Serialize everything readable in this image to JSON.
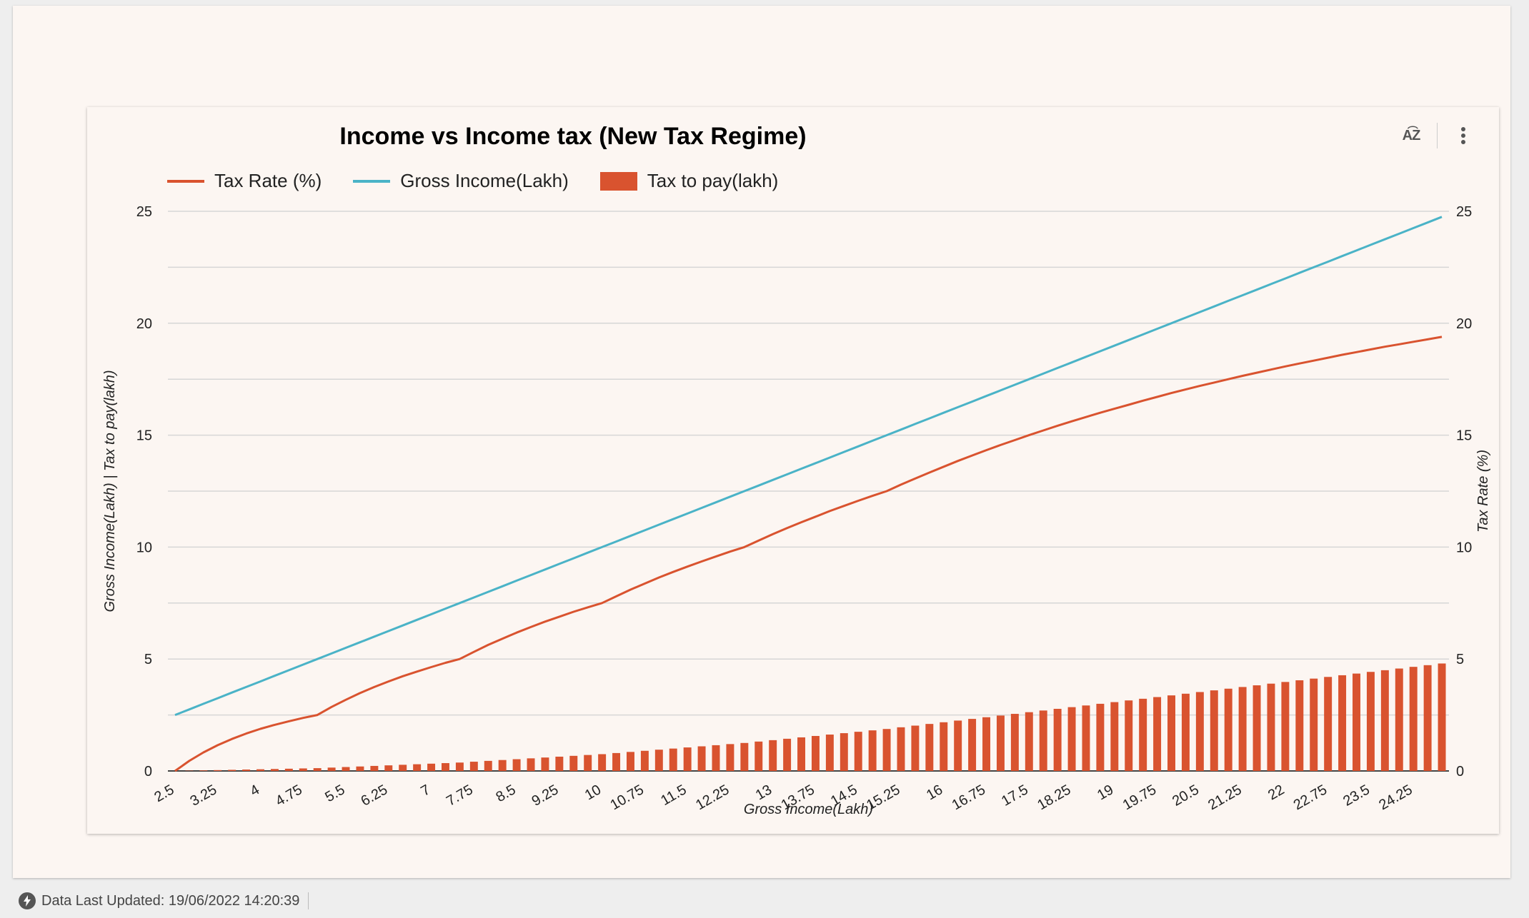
{
  "footer": {
    "text": "Data Last Updated: 19/06/2022 14:20:39"
  },
  "toolbar": {
    "sort_icon": "sort-az-icon",
    "menu_icon": "more-vert-icon"
  },
  "colors": {
    "tax_rate": "#d9532f",
    "gross_income": "#4ab3c7",
    "tax_to_pay": "#d9532f",
    "background": "#fcf6f2"
  },
  "chart_data": {
    "type": "bar",
    "title": "Income vs Income tax (New Tax Regime)",
    "xlabel": "Gross Income(Lakh)",
    "ylabel_left": "Gross Income(Lakh) | Tax to pay(lakh)",
    "ylabel_right": "Tax Rate (%)",
    "ylim": [
      0,
      25
    ],
    "yticks": [
      0,
      5,
      10,
      15,
      20,
      25
    ],
    "grid": true,
    "legend_position": "top-left",
    "x": [
      2.5,
      2.75,
      3,
      3.25,
      3.5,
      3.75,
      4,
      4.25,
      4.5,
      4.75,
      5,
      5.25,
      5.5,
      5.75,
      6,
      6.25,
      6.5,
      6.75,
      7,
      7.25,
      7.5,
      7.75,
      8,
      8.25,
      8.5,
      8.75,
      9,
      9.25,
      9.5,
      9.75,
      10,
      10.25,
      10.5,
      10.75,
      11,
      11.25,
      11.5,
      11.75,
      12,
      12.25,
      12.5,
      12.75,
      13,
      13.25,
      13.5,
      13.75,
      14,
      14.25,
      14.5,
      14.75,
      15,
      15.25,
      15.5,
      15.75,
      16,
      16.25,
      16.5,
      16.75,
      17,
      17.25,
      17.5,
      17.75,
      18,
      18.25,
      18.5,
      18.75,
      19,
      19.25,
      19.5,
      19.75,
      20,
      20.25,
      20.5,
      20.75,
      21,
      21.25,
      21.5,
      21.75,
      22,
      22.25,
      22.5,
      22.75,
      23,
      23.25,
      23.5,
      23.75,
      24,
      24.25,
      24.5,
      24.75
    ],
    "xtick_labels": [
      "2.5",
      "3.25",
      "4",
      "4.75",
      "5.5",
      "6.25",
      "7",
      "7.75",
      "8.5",
      "9.25",
      "10",
      "10.75",
      "11.5",
      "12.25",
      "13",
      "13.75",
      "14.5",
      "15.25",
      "16",
      "16.75",
      "17.5",
      "18.25",
      "19",
      "19.75",
      "20.5",
      "21.25",
      "22",
      "22.75",
      "23.5",
      "24.25"
    ],
    "series": [
      {
        "name": "Tax Rate (%)",
        "type": "line",
        "axis": "right",
        "values": [
          0,
          0.45,
          0.83,
          1.15,
          1.43,
          1.67,
          1.88,
          2.06,
          2.22,
          2.37,
          2.5,
          2.86,
          3.18,
          3.48,
          3.75,
          4,
          4.23,
          4.44,
          4.64,
          4.83,
          5,
          5.32,
          5.63,
          5.91,
          6.18,
          6.43,
          6.67,
          6.89,
          7.11,
          7.31,
          7.5,
          7.8,
          8.1,
          8.37,
          8.64,
          8.89,
          9.13,
          9.36,
          9.58,
          9.8,
          10,
          10.29,
          10.58,
          10.85,
          11.11,
          11.36,
          11.61,
          11.84,
          12.07,
          12.29,
          12.5,
          12.79,
          13.06,
          13.33,
          13.59,
          13.85,
          14.09,
          14.33,
          14.56,
          14.78,
          15,
          15.21,
          15.42,
          15.62,
          15.81,
          16,
          16.18,
          16.36,
          16.54,
          16.71,
          16.88,
          17.04,
          17.2,
          17.35,
          17.5,
          17.65,
          17.79,
          17.93,
          18.07,
          18.2,
          18.33,
          18.46,
          18.59,
          18.71,
          18.83,
          18.95,
          19.06,
          19.17,
          19.28,
          19.39
        ]
      },
      {
        "name": "Gross Income(Lakh)",
        "type": "line",
        "axis": "left",
        "values": [
          2.5,
          2.75,
          3,
          3.25,
          3.5,
          3.75,
          4,
          4.25,
          4.5,
          4.75,
          5,
          5.25,
          5.5,
          5.75,
          6,
          6.25,
          6.5,
          6.75,
          7,
          7.25,
          7.5,
          7.75,
          8,
          8.25,
          8.5,
          8.75,
          9,
          9.25,
          9.5,
          9.75,
          10,
          10.25,
          10.5,
          10.75,
          11,
          11.25,
          11.5,
          11.75,
          12,
          12.25,
          12.5,
          12.75,
          13,
          13.25,
          13.5,
          13.75,
          14,
          14.25,
          14.5,
          14.75,
          15,
          15.25,
          15.5,
          15.75,
          16,
          16.25,
          16.5,
          16.75,
          17,
          17.25,
          17.5,
          17.75,
          18,
          18.25,
          18.5,
          18.75,
          19,
          19.25,
          19.5,
          19.75,
          20,
          20.25,
          20.5,
          20.75,
          21,
          21.25,
          21.5,
          21.75,
          22,
          22.25,
          22.5,
          22.75,
          23,
          23.25,
          23.5,
          23.75,
          24,
          24.25,
          24.5,
          24.75
        ]
      },
      {
        "name": "Tax to pay(lakh)",
        "type": "bar",
        "axis": "left",
        "values": [
          0,
          0.013,
          0.025,
          0.038,
          0.05,
          0.063,
          0.075,
          0.088,
          0.1,
          0.113,
          0.125,
          0.15,
          0.175,
          0.2,
          0.225,
          0.25,
          0.275,
          0.3,
          0.325,
          0.35,
          0.375,
          0.413,
          0.45,
          0.488,
          0.525,
          0.563,
          0.6,
          0.638,
          0.675,
          0.713,
          0.75,
          0.8,
          0.85,
          0.9,
          0.95,
          1,
          1.05,
          1.1,
          1.15,
          1.2,
          1.25,
          1.313,
          1.375,
          1.438,
          1.5,
          1.563,
          1.625,
          1.688,
          1.75,
          1.813,
          1.875,
          1.95,
          2.025,
          2.1,
          2.175,
          2.25,
          2.325,
          2.4,
          2.475,
          2.55,
          2.625,
          2.7,
          2.775,
          2.85,
          2.925,
          3,
          3.075,
          3.15,
          3.225,
          3.3,
          3.375,
          3.45,
          3.525,
          3.6,
          3.675,
          3.75,
          3.825,
          3.9,
          3.975,
          4.05,
          4.125,
          4.2,
          4.275,
          4.35,
          4.425,
          4.5,
          4.575,
          4.65,
          4.725,
          4.8
        ]
      }
    ]
  }
}
